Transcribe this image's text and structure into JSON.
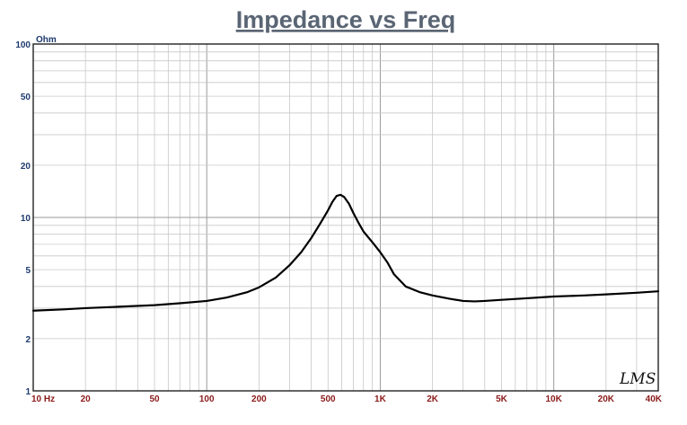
{
  "chart_data": {
    "type": "line",
    "title": "Impedance vs Freq",
    "ylabel": "Ohm",
    "xlabel": "",
    "xscale": "log",
    "yscale": "log",
    "xlim": [
      10,
      40000
    ],
    "ylim": [
      1,
      100
    ],
    "grid": true,
    "x_ticks": [
      {
        "value": 10,
        "label": "10 Hz"
      },
      {
        "value": 20,
        "label": "20"
      },
      {
        "value": 50,
        "label": "50"
      },
      {
        "value": 100,
        "label": "100"
      },
      {
        "value": 200,
        "label": "200"
      },
      {
        "value": 500,
        "label": "500"
      },
      {
        "value": 1000,
        "label": "1K"
      },
      {
        "value": 2000,
        "label": "2K"
      },
      {
        "value": 5000,
        "label": "5K"
      },
      {
        "value": 10000,
        "label": "10K"
      },
      {
        "value": 20000,
        "label": "20K"
      },
      {
        "value": 40000,
        "label": "40K"
      }
    ],
    "y_ticks": [
      {
        "value": 1,
        "label": "1"
      },
      {
        "value": 2,
        "label": "2"
      },
      {
        "value": 5,
        "label": "5"
      },
      {
        "value": 10,
        "label": "10"
      },
      {
        "value": 20,
        "label": "20"
      },
      {
        "value": 50,
        "label": "50"
      },
      {
        "value": 100,
        "label": "100"
      }
    ],
    "series": [
      {
        "color": "#000000",
        "x": [
          10,
          15,
          20,
          30,
          50,
          70,
          100,
          130,
          170,
          200,
          250,
          300,
          350,
          400,
          450,
          500,
          530,
          560,
          590,
          620,
          660,
          700,
          750,
          800,
          900,
          1000,
          1100,
          1200,
          1400,
          1700,
          2000,
          2500,
          3000,
          3500,
          4000,
          5000,
          7000,
          10000,
          15000,
          20000,
          30000,
          40000
        ],
        "y": [
          2.9,
          2.95,
          3.0,
          3.05,
          3.12,
          3.2,
          3.3,
          3.45,
          3.7,
          3.95,
          4.5,
          5.3,
          6.3,
          7.6,
          9.2,
          11.0,
          12.3,
          13.3,
          13.5,
          13.1,
          12.0,
          10.6,
          9.3,
          8.3,
          7.2,
          6.3,
          5.5,
          4.7,
          4.0,
          3.7,
          3.55,
          3.4,
          3.3,
          3.28,
          3.3,
          3.35,
          3.42,
          3.5,
          3.55,
          3.6,
          3.68,
          3.75
        ]
      }
    ]
  },
  "watermark": "LMS"
}
